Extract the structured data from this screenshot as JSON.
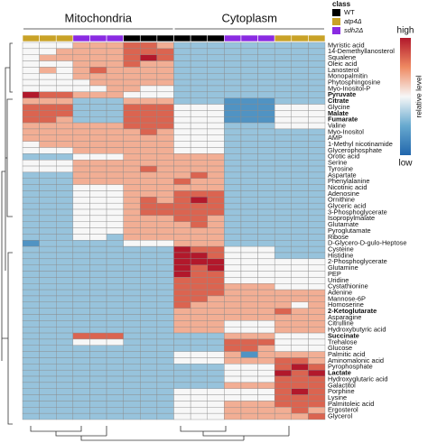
{
  "chart_data": {
    "type": "heatmap",
    "groups": [
      "Mitochondria",
      "Cytoplasm"
    ],
    "column_group": [
      0,
      0,
      0,
      0,
      0,
      0,
      0,
      0,
      0,
      1,
      1,
      1,
      1,
      1,
      1,
      1,
      1,
      1
    ],
    "legend_title": "class",
    "classes": [
      {
        "name": "WT",
        "color": "#000000"
      },
      {
        "name": "atp4Δ",
        "color": "#c9a227"
      },
      {
        "name": "sdh2Δ",
        "color": "#8a2be2"
      }
    ],
    "column_class": [
      1,
      1,
      1,
      2,
      2,
      2,
      0,
      0,
      0,
      0,
      0,
      0,
      2,
      2,
      2,
      1,
      1,
      1
    ],
    "colorbar_high": "high",
    "colorbar_low": "low",
    "colorbar_title": "relative level",
    "rows": [
      "Myristic acid",
      "14-Demethyllanosterol",
      "Squalene",
      "Oleic acid",
      "Lanosterol",
      "Monopalmitin",
      "Phytosphingosine",
      "Myo-Inositol-P",
      "Pyruvate",
      "Citrate",
      "Glycine",
      "Malate",
      "Fumarate",
      "Valine",
      "Myo-Inositol",
      "AMP",
      "1-Methyl nicotinamide",
      "Glycerophosphate",
      "Orotic acid",
      "Serine",
      "Tyrosine",
      "Aspartate",
      "Phenylalanine",
      "Nicotinic acid",
      "Adenosine",
      "Ornithine",
      "Glyceric acid",
      "3-Phosphoglycerate",
      "Isopropylmalate",
      "Glutamate",
      "Pyroglutamate",
      "Ribose",
      "D-Glycero-D-gulo-Heptose",
      "Cysteine",
      "Histidine",
      "2-Phosphoglycerate",
      "Glutamine",
      "PEP",
      "Uridine",
      "Cystathionine",
      "Adenine",
      "Mannose-6P",
      "Homoserine",
      "2-Ketoglutarate",
      "Asparagine",
      "Citrulline",
      "Hydroxybutyric acid",
      "Succinate",
      "Trehalose",
      "Glucose",
      "Palmitic acid",
      "Aminomalonic acid",
      "Pyrophosphate",
      "Lactate",
      "Hydroxyglutaric acid",
      "Galactitol",
      "Porphine",
      "Lysine",
      "Palmitoleic acid",
      "Ergosterol",
      "Glycerol"
    ],
    "bold_rows": [
      8,
      9,
      11,
      12,
      43,
      47,
      53
    ],
    "values": [
      [
        0,
        0,
        0,
        1,
        1,
        1,
        2,
        2,
        1,
        -1,
        -1,
        -1,
        -1,
        -1,
        -1,
        -1,
        -1,
        -1
      ],
      [
        0,
        0,
        1,
        1,
        1,
        1,
        2,
        2,
        2,
        -1,
        -1,
        -1,
        -1,
        -1,
        -1,
        -1,
        -1,
        -1
      ],
      [
        0,
        1,
        1,
        1,
        1,
        1,
        2,
        3,
        2,
        -1,
        -1,
        -1,
        -1,
        -1,
        -1,
        -1,
        -1,
        -1
      ],
      [
        0,
        0,
        0,
        1,
        1,
        1,
        2,
        1,
        1,
        -1,
        -1,
        -1,
        -1,
        -1,
        -1,
        -1,
        -1,
        -1
      ],
      [
        0,
        1,
        0,
        1,
        2,
        1,
        1,
        1,
        1,
        -1,
        -1,
        -1,
        -1,
        -1,
        -1,
        -1,
        -1,
        -1
      ],
      [
        0,
        0,
        0,
        1,
        1,
        1,
        1,
        1,
        1,
        -1,
        -1,
        -1,
        -1,
        -1,
        -1,
        -1,
        -1,
        -1
      ],
      [
        0,
        0,
        0,
        0,
        1,
        1,
        1,
        1,
        1,
        -1,
        -1,
        -1,
        -1,
        -1,
        -1,
        -1,
        -1,
        -1
      ],
      [
        0,
        0,
        0,
        0,
        0,
        1,
        1,
        0,
        0,
        -1,
        -1,
        -1,
        -1,
        -1,
        -1,
        -1,
        -1,
        -1
      ],
      [
        3,
        2,
        2,
        1,
        1,
        1,
        0,
        0,
        0,
        -1,
        -1,
        -1,
        -1,
        -1,
        -1,
        -1,
        -1,
        -1
      ],
      [
        1,
        1,
        1,
        -1,
        -1,
        -1,
        1,
        1,
        1,
        -1,
        -1,
        -1,
        -2,
        -2,
        -2,
        -1,
        -1,
        -1
      ],
      [
        2,
        2,
        2,
        -1,
        -1,
        -1,
        2,
        2,
        2,
        0,
        0,
        0,
        -2,
        -2,
        -2,
        0,
        0,
        0
      ],
      [
        2,
        2,
        2,
        -1,
        -1,
        -1,
        2,
        2,
        2,
        0,
        0,
        0,
        -2,
        -2,
        -2,
        0,
        0,
        0
      ],
      [
        2,
        2,
        1,
        -1,
        -1,
        -1,
        2,
        2,
        2,
        0,
        0,
        0,
        -2,
        -2,
        -2,
        0,
        0,
        0
      ],
      [
        1,
        1,
        1,
        1,
        1,
        1,
        2,
        2,
        2,
        0,
        0,
        0,
        -1,
        -1,
        -1,
        0,
        0,
        0
      ],
      [
        1,
        1,
        1,
        1,
        1,
        1,
        1,
        2,
        1,
        0,
        0,
        0,
        -1,
        -1,
        -1,
        -1,
        -1,
        -1
      ],
      [
        1,
        1,
        1,
        1,
        1,
        1,
        1,
        1,
        1,
        0,
        0,
        0,
        -1,
        -1,
        -1,
        -1,
        -1,
        -1
      ],
      [
        0,
        1,
        1,
        1,
        1,
        1,
        1,
        1,
        1,
        0,
        0,
        0,
        -1,
        -1,
        -1,
        -1,
        -1,
        -1
      ],
      [
        0,
        0,
        0,
        1,
        1,
        1,
        1,
        1,
        1,
        0,
        0,
        0,
        -1,
        -1,
        -1,
        -1,
        -1,
        -1
      ],
      [
        -1,
        -1,
        -1,
        0,
        0,
        0,
        1,
        1,
        1,
        1,
        1,
        1,
        -1,
        -1,
        -1,
        -1,
        -1,
        -1
      ],
      [
        0,
        0,
        0,
        1,
        1,
        1,
        1,
        1,
        1,
        1,
        1,
        1,
        -1,
        -1,
        -1,
        -1,
        -1,
        -1
      ],
      [
        0,
        0,
        0,
        1,
        1,
        1,
        1,
        2,
        1,
        1,
        1,
        1,
        -1,
        -1,
        -1,
        -1,
        -1,
        -1
      ],
      [
        -1,
        -1,
        -1,
        1,
        1,
        1,
        1,
        1,
        1,
        1,
        2,
        1,
        -1,
        -1,
        -1,
        -1,
        -1,
        -1
      ],
      [
        -1,
        -1,
        -1,
        1,
        1,
        1,
        1,
        1,
        1,
        2,
        1,
        1,
        -1,
        -1,
        -1,
        -1,
        -1,
        -1
      ],
      [
        -1,
        -1,
        -1,
        0,
        0,
        0,
        1,
        1,
        1,
        1,
        1,
        1,
        -1,
        -1,
        -1,
        -1,
        -1,
        -1
      ],
      [
        -1,
        -1,
        -1,
        0,
        0,
        0,
        1,
        1,
        1,
        2,
        2,
        2,
        -1,
        -1,
        -1,
        -1,
        -1,
        -1
      ],
      [
        -1,
        -1,
        -1,
        0,
        0,
        0,
        1,
        2,
        1,
        2,
        3,
        2,
        -1,
        -1,
        -1,
        -1,
        -1,
        -1
      ],
      [
        -1,
        -1,
        -1,
        0,
        0,
        0,
        1,
        2,
        2,
        2,
        2,
        2,
        -1,
        -1,
        -1,
        -1,
        -1,
        -1
      ],
      [
        -1,
        -1,
        -1,
        0,
        0,
        0,
        1,
        2,
        2,
        2,
        2,
        2,
        -1,
        -1,
        -1,
        -1,
        -1,
        -1
      ],
      [
        -1,
        -1,
        -1,
        0,
        0,
        0,
        1,
        1,
        1,
        2,
        2,
        1,
        -1,
        -1,
        -1,
        -1,
        -1,
        -1
      ],
      [
        -1,
        -1,
        -1,
        0,
        0,
        0,
        1,
        1,
        1,
        1,
        2,
        1,
        -1,
        -1,
        -1,
        -1,
        -1,
        -1
      ],
      [
        -1,
        -1,
        -1,
        0,
        0,
        0,
        1,
        1,
        1,
        1,
        1,
        1,
        -1,
        -1,
        -1,
        -1,
        -1,
        -1
      ],
      [
        -1,
        -1,
        -1,
        0,
        0,
        -1,
        1,
        1,
        1,
        1,
        1,
        1,
        -1,
        -1,
        -1,
        -1,
        -1,
        -1
      ],
      [
        -2,
        -1,
        -1,
        -1,
        -1,
        -1,
        0,
        0,
        0,
        1,
        1,
        1,
        -1,
        -1,
        -1,
        -1,
        -1,
        -1
      ],
      [
        -1,
        -1,
        -1,
        -1,
        -1,
        -1,
        -1,
        -1,
        -1,
        3,
        2,
        2,
        0,
        0,
        0,
        -1,
        -1,
        -1
      ],
      [
        -1,
        -1,
        -1,
        -1,
        -1,
        -1,
        -1,
        -1,
        -1,
        3,
        3,
        2,
        0,
        0,
        0,
        -1,
        -1,
        -1
      ],
      [
        -1,
        -1,
        -1,
        -1,
        -1,
        -1,
        -1,
        -1,
        -1,
        3,
        3,
        3,
        0,
        0,
        0,
        0,
        0,
        0
      ],
      [
        -1,
        -1,
        -1,
        -1,
        -1,
        -1,
        -1,
        -1,
        -1,
        3,
        2,
        3,
        0,
        0,
        0,
        0,
        0,
        0
      ],
      [
        -1,
        -1,
        -1,
        -1,
        -1,
        -1,
        -1,
        -1,
        -1,
        3,
        2,
        2,
        0,
        0,
        0,
        0,
        0,
        0
      ],
      [
        -1,
        -1,
        -1,
        -1,
        -1,
        -1,
        -1,
        -1,
        -1,
        2,
        2,
        2,
        0,
        0,
        0,
        0,
        0,
        0
      ],
      [
        -1,
        -1,
        -1,
        -1,
        -1,
        -1,
        -1,
        -1,
        -1,
        2,
        2,
        2,
        1,
        1,
        1,
        0,
        0,
        0
      ],
      [
        -1,
        -1,
        -1,
        -1,
        -1,
        -1,
        -1,
        -1,
        -1,
        2,
        2,
        2,
        1,
        1,
        1,
        1,
        1,
        1
      ],
      [
        -1,
        -1,
        -1,
        -1,
        -1,
        -1,
        -1,
        -1,
        -1,
        2,
        2,
        1,
        1,
        1,
        1,
        1,
        1,
        1
      ],
      [
        -1,
        -1,
        -1,
        -1,
        -1,
        -1,
        -1,
        -1,
        -1,
        2,
        1,
        1,
        1,
        1,
        1,
        1,
        0,
        1
      ],
      [
        -1,
        -1,
        -1,
        -1,
        -1,
        -1,
        -1,
        -1,
        -1,
        1,
        1,
        1,
        1,
        1,
        1,
        2,
        1,
        1
      ],
      [
        -1,
        -1,
        -1,
        -1,
        -1,
        -1,
        -1,
        -1,
        -1,
        1,
        1,
        1,
        1,
        1,
        1,
        1,
        1,
        1
      ],
      [
        -1,
        -1,
        -1,
        -1,
        -1,
        -1,
        -1,
        -1,
        -1,
        1,
        1,
        1,
        0,
        0,
        0,
        1,
        1,
        1
      ],
      [
        -1,
        -1,
        -1,
        -1,
        -1,
        -1,
        -1,
        -1,
        -1,
        1,
        1,
        1,
        0,
        0,
        0,
        1,
        1,
        1
      ],
      [
        -1,
        -1,
        -1,
        2,
        2,
        2,
        -1,
        -1,
        -1,
        -1,
        -1,
        -1,
        1,
        1,
        1,
        0,
        0,
        0
      ],
      [
        -1,
        -1,
        -1,
        0,
        0,
        0,
        -1,
        -1,
        -1,
        -1,
        -1,
        -1,
        2,
        2,
        2,
        0,
        0,
        0
      ],
      [
        -1,
        -1,
        -1,
        -1,
        -1,
        -1,
        -1,
        -1,
        -1,
        -1,
        -1,
        -1,
        2,
        2,
        1,
        0,
        0,
        0
      ],
      [
        -1,
        -1,
        -1,
        -1,
        -1,
        -1,
        -1,
        -1,
        -1,
        0,
        0,
        0,
        1,
        -2,
        1,
        1,
        1,
        1
      ],
      [
        -1,
        -1,
        -1,
        -1,
        -1,
        -1,
        -1,
        -1,
        -1,
        0,
        0,
        0,
        1,
        1,
        1,
        2,
        2,
        1
      ],
      [
        -1,
        -1,
        -1,
        -1,
        -1,
        -1,
        -1,
        -1,
        -1,
        -1,
        -1,
        -1,
        0,
        0,
        0,
        2,
        3,
        2
      ],
      [
        -1,
        -1,
        -1,
        -1,
        -1,
        -1,
        -1,
        -1,
        -1,
        -1,
        -1,
        -1,
        0,
        0,
        0,
        3,
        2,
        3
      ],
      [
        -1,
        -1,
        -1,
        -1,
        -1,
        -1,
        -1,
        -1,
        -1,
        -1,
        -1,
        -1,
        0,
        0,
        0,
        2,
        2,
        2
      ],
      [
        -1,
        -1,
        -1,
        -1,
        -1,
        -1,
        -1,
        -1,
        -1,
        -1,
        -1,
        -1,
        1,
        1,
        1,
        2,
        2,
        2
      ],
      [
        -1,
        -1,
        -1,
        -1,
        -1,
        -1,
        -1,
        -1,
        -1,
        0,
        0,
        0,
        0,
        0,
        0,
        2,
        3,
        2
      ],
      [
        -1,
        -1,
        -1,
        -1,
        -1,
        -1,
        -1,
        -1,
        -1,
        0,
        0,
        0,
        0,
        0,
        0,
        2,
        2,
        2
      ],
      [
        -1,
        -1,
        -1,
        -1,
        -1,
        -1,
        -1,
        -1,
        -1,
        0,
        0,
        0,
        1,
        1,
        1,
        2,
        2,
        2
      ],
      [
        -1,
        -1,
        -1,
        -1,
        -1,
        -1,
        -1,
        -1,
        -1,
        0,
        0,
        0,
        1,
        1,
        1,
        1,
        2,
        1
      ],
      [
        -1,
        -1,
        -1,
        -1,
        -1,
        -1,
        -1,
        -1,
        -1,
        0,
        0,
        0,
        1,
        1,
        1,
        1,
        1,
        2
      ]
    ]
  }
}
